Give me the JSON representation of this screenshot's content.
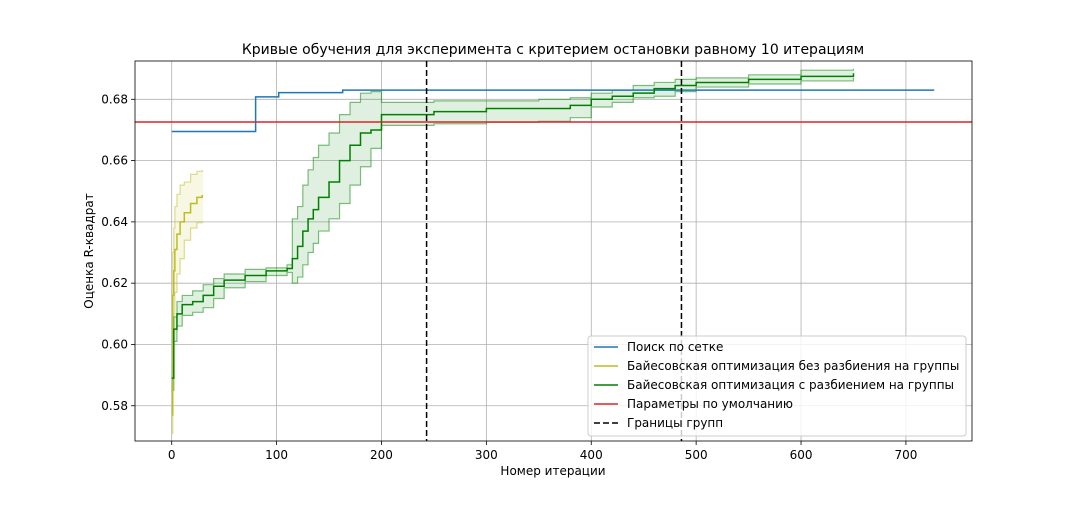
{
  "chart_data": {
    "type": "line",
    "title": "Кривые обучения для эксперимента с критерием остановки равному 10 итерациям",
    "xlabel": "Номер итерации",
    "ylabel": "Оценка R-квадрат",
    "xlim": [
      -35,
      763
    ],
    "ylim": [
      0.5685,
      0.6925
    ],
    "xticks": [
      0,
      100,
      200,
      300,
      400,
      500,
      600,
      700
    ],
    "xtick_labels": [
      "0",
      "100",
      "200",
      "300",
      "400",
      "500",
      "600",
      "700"
    ],
    "yticks": [
      0.58,
      0.6,
      0.62,
      0.64,
      0.66,
      0.68
    ],
    "ytick_labels": [
      "0.58",
      "0.60",
      "0.62",
      "0.64",
      "0.66",
      "0.68"
    ],
    "grid": true,
    "legend_position": "lower-right",
    "series": [
      {
        "name": "Поиск по сетке",
        "color": "#1f77b4",
        "style": "step",
        "x": [
          0,
          80,
          80,
          102,
          102,
          163,
          163,
          727
        ],
        "y": [
          0.6695,
          0.6695,
          0.6808,
          0.6808,
          0.6822,
          0.6822,
          0.683,
          0.683
        ]
      },
      {
        "name": "Байесовская оптимизация без разбиения на группы",
        "color": "#bcbd22",
        "style": "step",
        "x": [
          0,
          1,
          2,
          3,
          5,
          8,
          12,
          18,
          24,
          29,
          30
        ],
        "y": [
          0.577,
          0.616,
          0.624,
          0.631,
          0.636,
          0.64,
          0.643,
          0.646,
          0.648,
          0.6485,
          0.6485
        ],
        "band_upper": [
          0.583,
          0.63,
          0.638,
          0.645,
          0.649,
          0.652,
          0.653,
          0.6555,
          0.6565,
          0.6567,
          0.6567
        ],
        "band_lower": [
          0.571,
          0.602,
          0.61,
          0.617,
          0.623,
          0.628,
          0.634,
          0.638,
          0.6397,
          0.64,
          0.64
        ]
      },
      {
        "name": "Байесовская оптимизация с разбиением на группы",
        "color": "#008000",
        "style": "step",
        "x": [
          0,
          2,
          5,
          10,
          20,
          30,
          40,
          50,
          70,
          90,
          110,
          115,
          120,
          125,
          130,
          135,
          140,
          150,
          160,
          170,
          180,
          190,
          200,
          250,
          300,
          350,
          380,
          400,
          420,
          440,
          460,
          480,
          500,
          550,
          600,
          650
        ],
        "y": [
          0.589,
          0.605,
          0.61,
          0.613,
          0.614,
          0.616,
          0.619,
          0.621,
          0.6225,
          0.624,
          0.6248,
          0.628,
          0.632,
          0.637,
          0.641,
          0.644,
          0.648,
          0.653,
          0.66,
          0.665,
          0.669,
          0.67,
          0.675,
          0.676,
          0.677,
          0.677,
          0.678,
          0.68,
          0.681,
          0.682,
          0.6835,
          0.6845,
          0.6855,
          0.6865,
          0.6875,
          0.6885
        ],
        "band_upper": [
          0.593,
          0.609,
          0.614,
          0.616,
          0.6175,
          0.6195,
          0.6215,
          0.623,
          0.6245,
          0.625,
          0.626,
          0.641,
          0.645,
          0.652,
          0.657,
          0.661,
          0.665,
          0.669,
          0.675,
          0.679,
          0.682,
          0.6825,
          0.679,
          0.6795,
          0.6795,
          0.68,
          0.6805,
          0.682,
          0.683,
          0.6845,
          0.6855,
          0.6865,
          0.687,
          0.688,
          0.6895,
          0.69
        ],
        "band_lower": [
          0.585,
          0.601,
          0.606,
          0.6095,
          0.6105,
          0.612,
          0.615,
          0.6185,
          0.6205,
          0.6225,
          0.6235,
          0.62,
          0.622,
          0.626,
          0.63,
          0.633,
          0.637,
          0.641,
          0.646,
          0.652,
          0.658,
          0.664,
          0.6715,
          0.672,
          0.6725,
          0.6728,
          0.674,
          0.6775,
          0.679,
          0.6805,
          0.681,
          0.6825,
          0.684,
          0.685,
          0.686,
          0.687
        ]
      },
      {
        "name": "Параметры по умолчанию",
        "color": "#d62728",
        "style": "hline",
        "y": 0.6726
      },
      {
        "name": "Границы групп",
        "color": "#000000",
        "style": "vline-dashed",
        "x": [
          243,
          486
        ]
      }
    ]
  }
}
